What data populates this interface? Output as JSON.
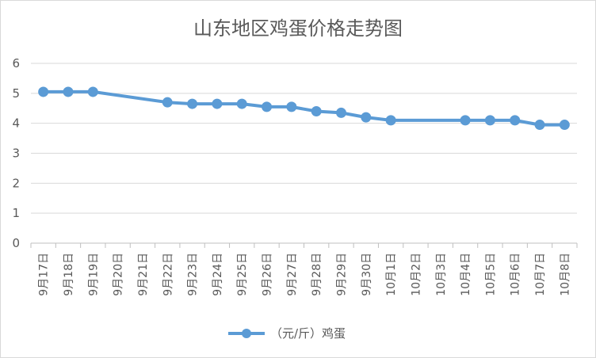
{
  "chart_data": {
    "type": "line",
    "title": "山东地区鸡蛋价格走势图",
    "xlabel": "",
    "ylabel": "",
    "ylim": [
      0,
      6
    ],
    "yticks": [
      "0",
      "1",
      "2",
      "3",
      "4",
      "5",
      "6"
    ],
    "categories": [
      "9月17日",
      "9月18日",
      "9月19日",
      "9月20日",
      "9月21日",
      "9月22日",
      "9月23日",
      "9月24日",
      "9月25日",
      "9月26日",
      "9月27日",
      "9月28日",
      "9月29日",
      "9月30日",
      "10月1日",
      "10月2日",
      "10月3日",
      "10月4日",
      "10月5日",
      "10月6日",
      "10月7日",
      "10月8日"
    ],
    "series": [
      {
        "name": "（元/斤）鸡蛋",
        "color": "#5b9bd5",
        "values": [
          5.05,
          5.05,
          5.05,
          null,
          null,
          4.7,
          4.65,
          4.65,
          4.65,
          4.55,
          4.55,
          4.4,
          4.35,
          4.2,
          4.1,
          null,
          null,
          4.1,
          4.1,
          4.1,
          3.95,
          3.95
        ]
      }
    ],
    "grid": true,
    "legend": "bottom"
  }
}
